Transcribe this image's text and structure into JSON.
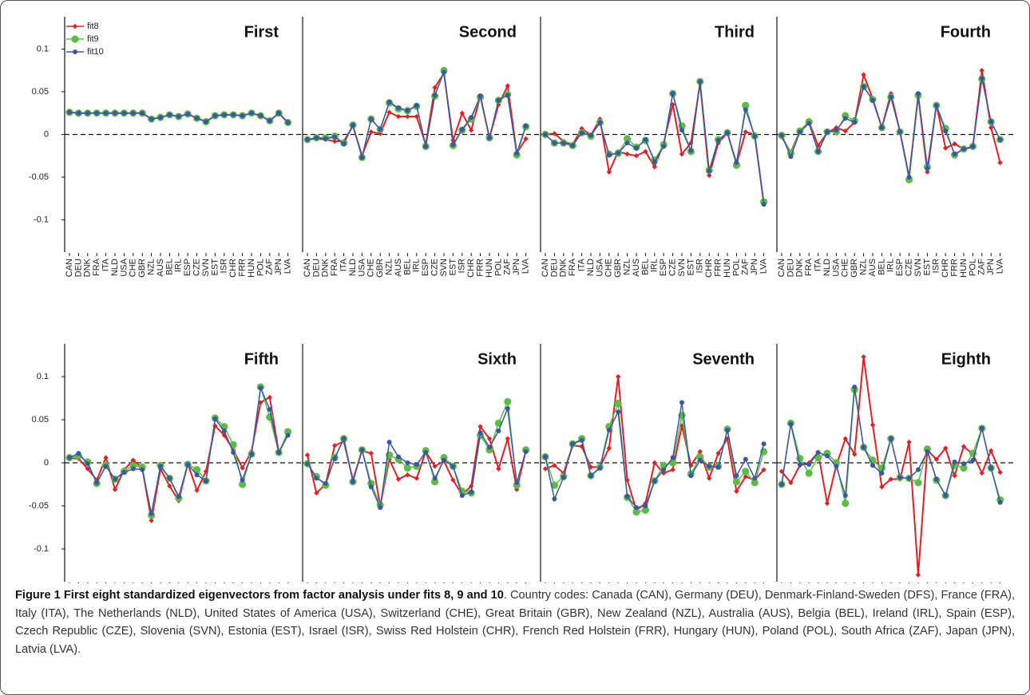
{
  "chart_data": [
    {
      "type": "line",
      "title": "First",
      "legend": "top-left",
      "categories": [
        "CAN",
        "DEU",
        "DNK",
        "FRA",
        "ITA",
        "NLD",
        "USA",
        "CHE",
        "GBR",
        "NZL",
        "AUS",
        "BEL",
        "IRL",
        "ESP",
        "CZE",
        "SVN",
        "EST",
        "ISR",
        "CHR",
        "FRR",
        "HUN",
        "POL",
        "ZAF",
        "JPN",
        "LVA"
      ],
      "series": [
        {
          "name": "fit8",
          "color": "#e31e24",
          "values": [
            0.026,
            0.025,
            0.025,
            0.025,
            0.025,
            0.025,
            0.025,
            0.025,
            0.025,
            0.018,
            0.02,
            0.023,
            0.021,
            0.024,
            0.019,
            0.015,
            0.022,
            0.023,
            0.023,
            0.022,
            0.025,
            0.022,
            0.016,
            0.025,
            0.014
          ]
        },
        {
          "name": "fit9",
          "color": "#5cbd46",
          "values": [
            0.026,
            0.025,
            0.025,
            0.025,
            0.025,
            0.025,
            0.025,
            0.025,
            0.025,
            0.018,
            0.02,
            0.023,
            0.021,
            0.024,
            0.019,
            0.015,
            0.022,
            0.023,
            0.023,
            0.022,
            0.025,
            0.022,
            0.016,
            0.025,
            0.014
          ]
        },
        {
          "name": "fit10",
          "color": "#3c56a6",
          "values": [
            0.026,
            0.025,
            0.025,
            0.025,
            0.025,
            0.025,
            0.025,
            0.025,
            0.025,
            0.018,
            0.02,
            0.023,
            0.021,
            0.024,
            0.019,
            0.015,
            0.022,
            0.023,
            0.023,
            0.022,
            0.025,
            0.022,
            0.016,
            0.025,
            0.014
          ]
        }
      ],
      "ylim": [
        -0.138,
        0.138
      ],
      "yticks": [
        -0.1,
        -0.05,
        0,
        0.05,
        0.1
      ],
      "hline": 0
    },
    {
      "type": "line",
      "title": "Second",
      "categories": [
        "CAN",
        "DEU",
        "DNK",
        "FRA",
        "ITA",
        "NLD",
        "USA",
        "CHE",
        "GBR",
        "NZL",
        "AUS",
        "BEL",
        "IRL",
        "ESP",
        "CZE",
        "SVN",
        "EST",
        "ISR",
        "CHR",
        "FRR",
        "HUN",
        "POL",
        "ZAF",
        "JPN",
        "LVA"
      ],
      "series": [
        {
          "color": "#e31e24",
          "values": [
            -0.006,
            -0.005,
            -0.006,
            -0.008,
            -0.008,
            0.01,
            -0.025,
            0.003,
            0.001,
            0.026,
            0.021,
            0.021,
            0.021,
            -0.012,
            0.055,
            0.072,
            -0.007,
            0.025,
            0.005,
            0.045,
            -0.004,
            0.035,
            0.057,
            -0.022,
            -0.005
          ]
        },
        {
          "color": "#5cbd46",
          "values": [
            -0.006,
            -0.004,
            -0.004,
            -0.002,
            -0.01,
            0.011,
            -0.027,
            0.018,
            0.006,
            0.037,
            0.03,
            0.028,
            0.033,
            -0.014,
            0.045,
            0.075,
            -0.013,
            0.005,
            0.018,
            0.044,
            -0.004,
            0.04,
            0.047,
            -0.024,
            0.009
          ]
        },
        {
          "color": "#3c56a6",
          "values": [
            -0.006,
            -0.004,
            -0.005,
            -0.003,
            -0.011,
            0.011,
            -0.027,
            0.018,
            0.006,
            0.038,
            0.031,
            0.028,
            0.034,
            -0.014,
            0.046,
            0.073,
            -0.012,
            0.006,
            0.02,
            0.045,
            -0.004,
            0.04,
            0.046,
            -0.022,
            0.01
          ]
        }
      ],
      "ylim": [
        -0.138,
        0.138
      ],
      "hline": 0
    },
    {
      "type": "line",
      "title": "Third",
      "categories": [
        "CAN",
        "DEU",
        "DNK",
        "FRA",
        "ITA",
        "NLD",
        "USA",
        "CHE",
        "GBR",
        "NZL",
        "AUS",
        "BEL",
        "IRL",
        "ESP",
        "CZE",
        "SVN",
        "EST",
        "ISR",
        "CHR",
        "FRR",
        "HUN",
        "POL",
        "ZAF",
        "JPN",
        "LVA"
      ],
      "series": [
        {
          "color": "#e31e24",
          "values": [
            0.0,
            0.001,
            -0.008,
            -0.012,
            0.007,
            -0.001,
            0.018,
            -0.044,
            -0.02,
            -0.023,
            -0.025,
            -0.02,
            -0.038,
            -0.01,
            0.035,
            -0.023,
            -0.01,
            0.06,
            -0.048,
            -0.01,
            0.002,
            -0.035,
            0.003,
            0.0,
            -0.08
          ]
        },
        {
          "color": "#5cbd46",
          "values": [
            0.0,
            -0.01,
            -0.01,
            -0.013,
            0.002,
            -0.002,
            0.014,
            -0.023,
            -0.022,
            -0.005,
            -0.015,
            -0.007,
            -0.03,
            -0.012,
            0.048,
            0.01,
            -0.02,
            0.062,
            -0.042,
            -0.006,
            0.002,
            -0.036,
            0.034,
            -0.002,
            -0.079
          ]
        },
        {
          "color": "#3c56a6",
          "values": [
            0.0,
            -0.01,
            -0.01,
            -0.013,
            0.002,
            -0.001,
            0.014,
            -0.024,
            -0.022,
            -0.01,
            -0.016,
            -0.006,
            -0.032,
            -0.014,
            0.048,
            0.005,
            -0.019,
            0.062,
            -0.043,
            -0.007,
            0.002,
            -0.033,
            0.029,
            -0.002,
            -0.082
          ]
        }
      ],
      "ylim": [
        -0.138,
        0.138
      ],
      "hline": 0
    },
    {
      "type": "line",
      "title": "Fourth",
      "categories": [
        "CAN",
        "DEU",
        "DNK",
        "FRA",
        "ITA",
        "NLD",
        "USA",
        "CHE",
        "GBR",
        "NZL",
        "AUS",
        "BEL",
        "IRL",
        "ESP",
        "CZE",
        "SVN",
        "EST",
        "ISR",
        "CHR",
        "FRR",
        "HUN",
        "POL",
        "ZAF",
        "JPN",
        "LVA"
      ],
      "series": [
        {
          "color": "#e31e24",
          "values": [
            -0.003,
            -0.021,
            0.004,
            0.015,
            -0.013,
            0.002,
            0.008,
            0.004,
            0.014,
            0.07,
            0.042,
            0.008,
            0.048,
            0.003,
            -0.05,
            0.045,
            -0.044,
            0.035,
            -0.016,
            -0.011,
            -0.017,
            -0.015,
            0.075,
            0.008,
            -0.033
          ]
        },
        {
          "color": "#5cbd46",
          "values": [
            -0.001,
            -0.022,
            0.004,
            0.015,
            -0.02,
            0.003,
            0.003,
            0.022,
            0.016,
            0.056,
            0.041,
            0.008,
            0.044,
            0.003,
            -0.053,
            0.046,
            -0.038,
            0.034,
            0.007,
            -0.024,
            -0.017,
            -0.014,
            0.065,
            0.015,
            -0.006
          ]
        },
        {
          "color": "#3c56a6",
          "values": [
            -0.001,
            -0.026,
            0.003,
            0.013,
            -0.02,
            0.003,
            0.005,
            0.019,
            0.014,
            0.056,
            0.04,
            0.008,
            0.044,
            0.003,
            -0.05,
            0.048,
            -0.04,
            0.034,
            0.004,
            -0.023,
            -0.017,
            -0.014,
            0.066,
            0.015,
            -0.006
          ]
        }
      ],
      "ylim": [
        -0.138,
        0.138
      ],
      "hline": 0
    },
    {
      "type": "line",
      "title": "Fifth",
      "categories": [
        "CAN",
        "DEU",
        "DNK",
        "FRA",
        "ITA",
        "NLD",
        "USA",
        "CHE",
        "GBR",
        "NZL",
        "AUS",
        "BEL",
        "IRL",
        "ESP",
        "CZE",
        "SVN",
        "EST",
        "ISR",
        "CHR",
        "FRR",
        "HUN",
        "POL",
        "ZAF",
        "JPN",
        "LVA"
      ],
      "series": [
        {
          "color": "#e31e24",
          "values": [
            0.005,
            0.005,
            -0.007,
            -0.02,
            0.006,
            -0.031,
            -0.008,
            0.003,
            -0.006,
            -0.067,
            -0.007,
            -0.027,
            -0.044,
            -0.001,
            -0.032,
            -0.01,
            0.043,
            0.032,
            0.015,
            -0.006,
            0.013,
            0.07,
            0.076,
            0.012,
            0.034
          ]
        },
        {
          "color": "#5cbd46",
          "values": [
            0.006,
            0.008,
            0.001,
            -0.024,
            -0.003,
            -0.019,
            -0.01,
            -0.003,
            -0.005,
            -0.061,
            -0.003,
            -0.018,
            -0.041,
            -0.002,
            -0.008,
            -0.021,
            0.052,
            0.042,
            0.021,
            -0.025,
            0.01,
            0.088,
            0.053,
            0.012,
            0.036
          ]
        },
        {
          "color": "#3c56a6",
          "values": [
            0.006,
            0.011,
            -0.001,
            -0.023,
            -0.004,
            -0.019,
            -0.011,
            -0.007,
            -0.008,
            -0.059,
            -0.004,
            -0.018,
            -0.039,
            -0.002,
            -0.014,
            -0.021,
            0.051,
            0.037,
            0.012,
            -0.02,
            0.01,
            0.087,
            0.062,
            0.012,
            0.032
          ]
        }
      ],
      "ylim": [
        -0.138,
        0.138
      ],
      "yticks": [
        -0.1,
        -0.05,
        0,
        0.05,
        0.1
      ],
      "hline": 0
    },
    {
      "type": "line",
      "title": "Sixth",
      "categories": [
        "CAN",
        "DEU",
        "DNK",
        "FRA",
        "ITA",
        "NLD",
        "USA",
        "CHE",
        "GBR",
        "NZL",
        "AUS",
        "BEL",
        "IRL",
        "ESP",
        "CZE",
        "SVN",
        "EST",
        "ISR",
        "CHR",
        "FRR",
        "HUN",
        "POL",
        "ZAF",
        "JPN",
        "LVA"
      ],
      "series": [
        {
          "color": "#e31e24",
          "values": [
            0.009,
            -0.035,
            -0.025,
            0.02,
            0.025,
            -0.02,
            0.014,
            0.011,
            -0.05,
            0.004,
            -0.019,
            -0.014,
            -0.018,
            0.013,
            -0.004,
            0.002,
            -0.02,
            -0.037,
            -0.027,
            0.042,
            0.028,
            -0.007,
            0.028,
            -0.031,
            0.014
          ]
        },
        {
          "color": "#5cbd46",
          "values": [
            -0.001,
            -0.016,
            -0.026,
            0.006,
            0.028,
            -0.022,
            0.015,
            -0.024,
            -0.049,
            0.009,
            0.004,
            -0.006,
            -0.004,
            0.014,
            -0.022,
            0.006,
            -0.004,
            -0.033,
            -0.035,
            0.032,
            0.015,
            0.046,
            0.071,
            -0.026,
            0.015
          ]
        },
        {
          "color": "#3c56a6",
          "values": [
            -0.001,
            -0.018,
            -0.024,
            0.005,
            0.028,
            -0.022,
            0.015,
            -0.028,
            -0.052,
            0.024,
            0.007,
            0.0,
            -0.002,
            0.012,
            -0.018,
            0.003,
            -0.004,
            -0.038,
            -0.034,
            0.035,
            0.018,
            0.037,
            0.063,
            -0.023,
            0.013
          ]
        }
      ],
      "ylim": [
        -0.138,
        0.138
      ],
      "hline": 0
    },
    {
      "type": "line",
      "title": "Seventh",
      "categories": [
        "CAN",
        "DEU",
        "DNK",
        "FRA",
        "ITA",
        "NLD",
        "USA",
        "CHE",
        "GBR",
        "NZL",
        "AUS",
        "BEL",
        "IRL",
        "ESP",
        "CZE",
        "SVN",
        "EST",
        "ISR",
        "CHR",
        "FRR",
        "HUN",
        "POL",
        "ZAF",
        "JPN",
        "LVA"
      ],
      "series": [
        {
          "color": "#e31e24",
          "values": [
            -0.007,
            -0.003,
            -0.012,
            0.02,
            0.019,
            -0.005,
            -0.005,
            0.017,
            0.1,
            -0.02,
            -0.055,
            -0.047,
            0.0,
            -0.012,
            -0.008,
            0.043,
            -0.003,
            0.013,
            -0.018,
            0.011,
            0.028,
            -0.033,
            -0.016,
            -0.02,
            -0.008
          ]
        },
        {
          "color": "#5cbd46",
          "values": [
            0.007,
            -0.026,
            -0.016,
            0.022,
            0.028,
            -0.015,
            -0.005,
            0.042,
            0.069,
            -0.04,
            -0.057,
            -0.055,
            -0.021,
            -0.003,
            0.0,
            0.055,
            -0.013,
            0.007,
            -0.005,
            -0.004,
            0.039,
            -0.022,
            -0.01,
            -0.023,
            0.013
          ]
        },
        {
          "color": "#3c56a6",
          "values": [
            0.007,
            -0.042,
            -0.017,
            0.022,
            0.026,
            -0.015,
            -0.006,
            0.038,
            0.059,
            -0.039,
            -0.052,
            -0.05,
            -0.021,
            -0.008,
            0.006,
            0.07,
            -0.015,
            0.003,
            -0.004,
            -0.005,
            0.038,
            -0.015,
            0.004,
            -0.018,
            0.022
          ]
        }
      ],
      "ylim": [
        -0.138,
        0.138
      ],
      "hline": 0
    },
    {
      "type": "line",
      "title": "Eighth",
      "categories": [
        "CAN",
        "DEU",
        "DNK",
        "FRA",
        "ITA",
        "NLD",
        "USA",
        "CHE",
        "GBR",
        "NZL",
        "AUS",
        "BEL",
        "IRL",
        "ESP",
        "CZE",
        "SVN",
        "EST",
        "ISR",
        "CHR",
        "FRR",
        "HUN",
        "POL",
        "ZAF",
        "JPN",
        "LVA"
      ],
      "series": [
        {
          "color": "#e31e24",
          "values": [
            -0.01,
            -0.023,
            -0.003,
            0.0,
            0.012,
            -0.047,
            -0.003,
            0.028,
            0.01,
            0.123,
            0.044,
            -0.028,
            -0.019,
            -0.019,
            0.024,
            -0.13,
            0.015,
            0.004,
            0.017,
            -0.015,
            0.019,
            0.01,
            -0.012,
            0.014,
            -0.011
          ]
        },
        {
          "color": "#5cbd46",
          "values": [
            -0.025,
            0.046,
            0.005,
            -0.012,
            0.006,
            0.011,
            0.0,
            -0.047,
            0.085,
            0.018,
            0.003,
            -0.006,
            0.028,
            -0.017,
            -0.018,
            -0.023,
            0.016,
            -0.02,
            -0.038,
            -0.003,
            -0.006,
            0.011,
            0.04,
            -0.006,
            -0.043
          ]
        },
        {
          "color": "#3c56a6",
          "values": [
            -0.025,
            0.045,
            -0.002,
            -0.002,
            0.012,
            0.008,
            -0.004,
            -0.038,
            0.088,
            0.018,
            -0.003,
            -0.012,
            0.028,
            -0.017,
            -0.018,
            -0.008,
            0.013,
            -0.019,
            -0.038,
            0.001,
            -0.001,
            0.003,
            0.04,
            -0.006,
            -0.046
          ]
        }
      ],
      "ylim": [
        -0.138,
        0.138
      ],
      "hline": 0
    }
  ],
  "caption": {
    "bold": "Figure 1 First eight standardized eigenvectors from factor analysis under fits 8, 9 and 10",
    "text": ". Country codes: Canada (CAN), Germany (DEU), Denmark-Finland-Sweden (DFS), France (FRA), Italy (ITA), The Netherlands (NLD), United States of America (USA), Switzerland (CHE), Great Britain (GBR), New Zealand (NZL), Australia (AUS), Belgia (BEL), Ireland (IRL), Spain (ESP), Czech Republic (CZE), Slovenia (SVN), Estonia (EST), Israel (ISR), Swiss Red Holstein (CHR), French Red Holstein (FRR), Hungary (HUN), Poland (POL), South Africa (ZAF), Japan (JPN), Latvia (LVA)."
  }
}
